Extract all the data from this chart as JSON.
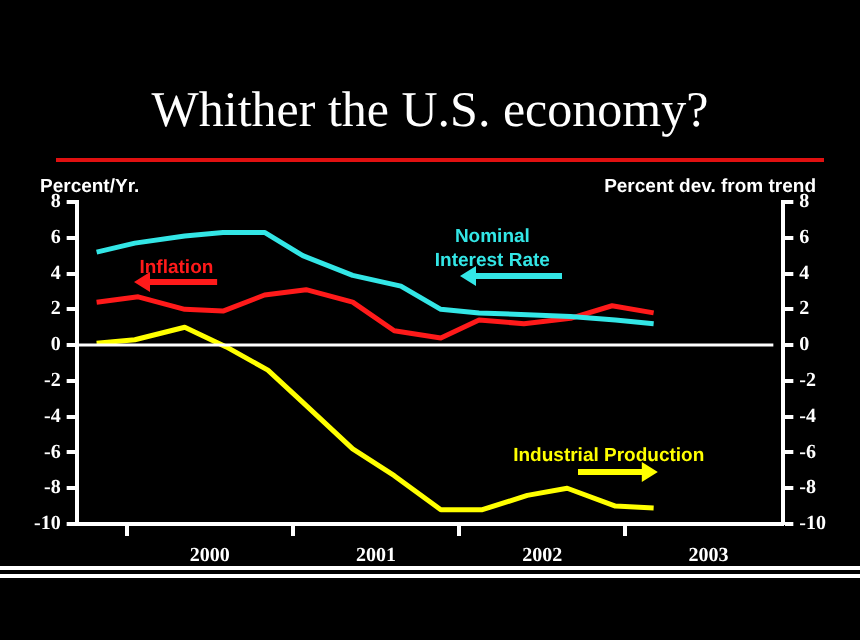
{
  "chart_data": {
    "type": "line",
    "title": "Whither the U.S. economy?",
    "ylabel": "Percent/Yr.",
    "y2label": "Percent dev. from trend",
    "xlim": [
      1999.7,
      2003.95
    ],
    "xticks": [
      {
        "value": 2000,
        "label": null
      },
      {
        "value": 2000.5,
        "label": "2000"
      },
      {
        "value": 2001,
        "label": null
      },
      {
        "value": 2001.5,
        "label": "2001"
      },
      {
        "value": 2002,
        "label": null
      },
      {
        "value": 2002.5,
        "label": "2002"
      },
      {
        "value": 2003,
        "label": null
      },
      {
        "value": 2003.5,
        "label": "2003"
      }
    ],
    "ylim": [
      -10,
      8
    ],
    "yticks": [
      -10,
      -8,
      -6,
      -4,
      -2,
      0,
      2,
      4,
      6,
      8
    ],
    "y2lim": [
      -10,
      8
    ],
    "y2ticks": [
      -10,
      -8,
      -6,
      -4,
      -2,
      0,
      2,
      4,
      6,
      8
    ],
    "grid": false,
    "legend": false,
    "marker": "none",
    "line_style": "solid",
    "ref_lines": [
      {
        "axis": "y",
        "value": 0,
        "color": "#ffffff"
      }
    ],
    "series": [
      {
        "name": "Nominal Interest Rate",
        "color": "#33e6e6",
        "x": [
          1999.82,
          2000.05,
          2000.35,
          2000.58,
          2000.83,
          2001.06,
          2001.36,
          2001.65,
          2001.89,
          2002.12,
          2002.41,
          2002.67,
          2002.94,
          2003.17
        ],
        "values": [
          5.2,
          5.7,
          6.1,
          6.3,
          6.3,
          5.0,
          3.9,
          3.3,
          2.0,
          1.8,
          1.7,
          1.6,
          1.4,
          1.2
        ]
      },
      {
        "name": "Inflation",
        "color": "#ff1a1a",
        "x": [
          1999.82,
          2000.07,
          2000.35,
          2000.58,
          2000.83,
          2001.08,
          2001.36,
          2001.61,
          2001.89,
          2002.12,
          2002.39,
          2002.67,
          2002.92,
          2003.17
        ],
        "values": [
          2.4,
          2.7,
          2.0,
          1.9,
          2.8,
          3.1,
          2.4,
          0.8,
          0.4,
          1.4,
          1.2,
          1.5,
          2.2,
          1.8
        ]
      },
      {
        "name": "Industrial Production",
        "color": "#ffff00",
        "axis": "y2",
        "x": [
          1999.82,
          2000.05,
          2000.35,
          2000.6,
          2000.85,
          2001.06,
          2001.36,
          2001.61,
          2001.89,
          2002.14,
          2002.41,
          2002.65,
          2002.94,
          2003.17
        ],
        "values": [
          0.1,
          0.3,
          1.0,
          -0.1,
          -1.4,
          -3.2,
          -5.8,
          -7.3,
          -9.2,
          -9.2,
          -8.4,
          -8.0,
          -9.0,
          -9.1
        ]
      }
    ]
  }
}
